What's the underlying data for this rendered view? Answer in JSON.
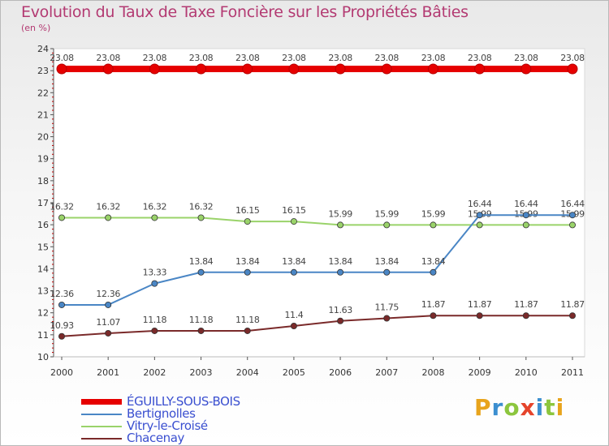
{
  "chart_data": {
    "type": "line",
    "title": "Evolution du Taux de Taxe Foncière sur les Propriétés Bâties",
    "ylabel": "(en %)",
    "xlabel": "",
    "categories": [
      "2000",
      "2001",
      "2002",
      "2003",
      "2004",
      "2005",
      "2006",
      "2007",
      "2008",
      "2009",
      "2010",
      "2011"
    ],
    "ylim": [
      10,
      24
    ],
    "yticks": [
      10,
      11,
      12,
      13,
      14,
      15,
      16,
      17,
      18,
      19,
      20,
      21,
      22,
      23,
      24
    ],
    "series": [
      {
        "name": "ÉGUILLY-SOUS-BOIS",
        "color": "#e60000",
        "values": [
          23.08,
          23.08,
          23.08,
          23.08,
          23.08,
          23.08,
          23.08,
          23.08,
          23.08,
          23.08,
          23.08,
          23.08
        ],
        "labels": [
          "23.08",
          "23.08",
          "23.08",
          "23.08",
          "23.08",
          "23.08",
          "23.08",
          "23.08",
          "23.08",
          "23.08",
          "23.08",
          "23.08"
        ]
      },
      {
        "name": "Bertignolles",
        "color": "#4a86c5",
        "values": [
          12.36,
          12.36,
          13.33,
          13.84,
          13.84,
          13.84,
          13.84,
          13.84,
          13.84,
          16.44,
          16.44,
          16.44
        ],
        "labels": [
          "12.36",
          "12.36",
          "13.33",
          "13.84",
          "13.84",
          "13.84",
          "13.84",
          "13.84",
          "13.84",
          "16.44",
          "16.44",
          "16.44"
        ]
      },
      {
        "name": "Vitry-le-Croisé",
        "color": "#9ad36a",
        "values": [
          16.32,
          16.32,
          16.32,
          16.32,
          16.15,
          16.15,
          15.99,
          15.99,
          15.99,
          15.99,
          15.99,
          15.99
        ],
        "labels": [
          "16.32",
          "16.32",
          "16.32",
          "16.32",
          "16.15",
          "16.15",
          "15.99",
          "15.99",
          "15.99",
          "15.99",
          "15.99",
          "15.99"
        ]
      },
      {
        "name": "Chacenay",
        "color": "#7a2a2a",
        "values": [
          10.93,
          11.07,
          11.18,
          11.18,
          11.18,
          11.4,
          11.63,
          11.75,
          11.87,
          11.87,
          11.87,
          11.87
        ],
        "labels": [
          "10.93",
          "11.07",
          "11.18",
          "11.18",
          "11.18",
          "11.4",
          "11.63",
          "11.75",
          "11.87",
          "11.87",
          "11.87",
          "11.87"
        ]
      }
    ],
    "legend": {
      "position": "bottom-left"
    }
  },
  "logo_text": "Proxiti"
}
